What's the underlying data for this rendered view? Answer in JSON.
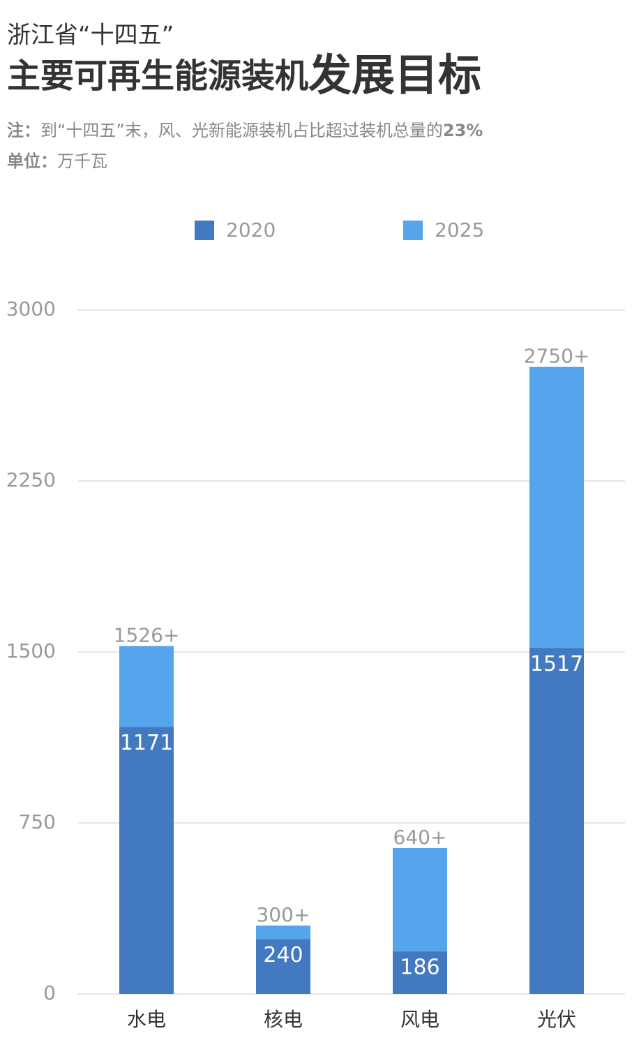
{
  "header": {
    "title_line1": "浙江省“十四五”",
    "title_main": "主要可再生能源装机",
    "title_emphasis": "发展目标",
    "note_label": "注：",
    "note": "到“十四五”末，风、光新能源装机占比超过装机总量的",
    "note_emphasis": "23%",
    "unit_label": "单位：",
    "unit": "万千瓦"
  },
  "chart_data": {
    "type": "bar",
    "overlap": true,
    "categories": [
      "水电",
      "核电",
      "风电",
      "光伏"
    ],
    "series": [
      {
        "name": "2020",
        "color": "#4279c0",
        "values": [
          1171,
          240,
          186,
          1517
        ]
      },
      {
        "name": "2025",
        "color": "#56a4ec",
        "values": [
          1526,
          300,
          640,
          2750
        ],
        "value_labels": [
          "1526+",
          "300+",
          "640+",
          "2750+"
        ]
      }
    ],
    "ylim": [
      0,
      3000
    ],
    "yticks": [
      0,
      750,
      1500,
      2250,
      3000
    ],
    "grid": true
  }
}
